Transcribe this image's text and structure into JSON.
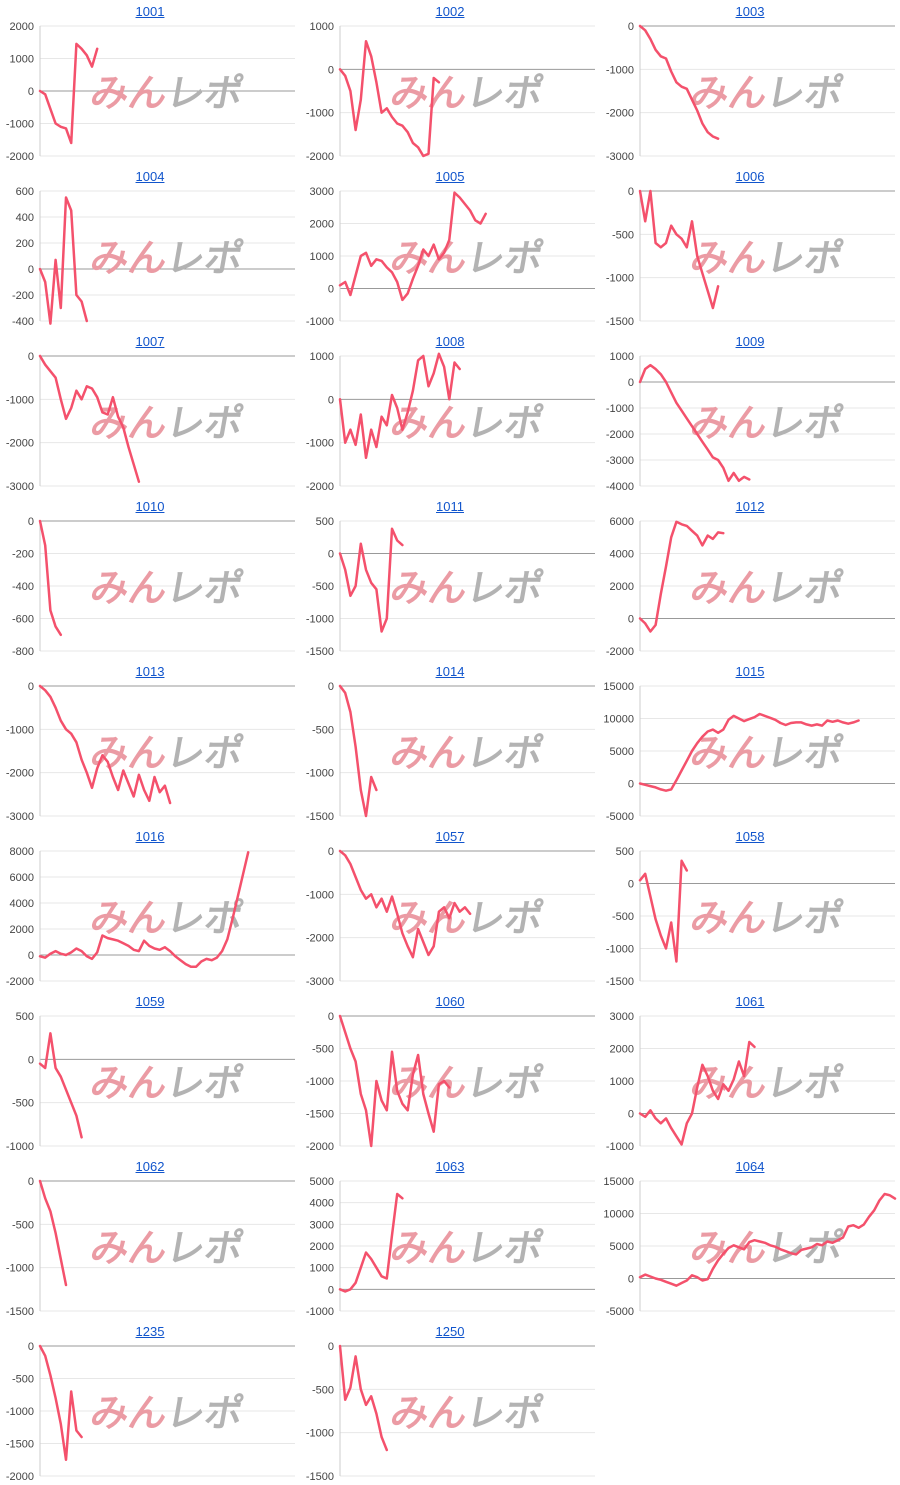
{
  "page": {
    "background": "#ffffff"
  },
  "style": {
    "line_color": "#f4516c",
    "title_color": "#1155cc",
    "tick_color": "#444444",
    "grid_color": "#e7e7e7",
    "zero_line_color": "#999999",
    "axis_color": "#cccccc",
    "watermark_pink_color": "#eb9ba4",
    "watermark_gray_color": "#b3b3b3"
  },
  "watermark": {
    "pink": "みん",
    "gray": "レポ",
    "full_text": "みんレポ"
  },
  "chart_data": {
    "type": "line",
    "grid": true,
    "x_slots": 50,
    "charts": [
      {
        "title": "1001",
        "yticks": [
          2000,
          1000,
          0,
          -1000,
          -2000
        ],
        "values": [
          0,
          -100,
          -550,
          -1000,
          -1100,
          -1150,
          -1600,
          1450,
          1300,
          1100,
          750,
          1300
        ]
      },
      {
        "title": "1002",
        "yticks": [
          1000,
          0,
          -1000,
          -2000
        ],
        "values": [
          0,
          -150,
          -500,
          -1400,
          -700,
          650,
          300,
          -300,
          -1000,
          -900,
          -1100,
          -1250,
          -1300,
          -1450,
          -1700,
          -1800,
          -2000,
          -1950,
          -200,
          -300
        ]
      },
      {
        "title": "1003",
        "yticks": [
          0,
          -1000,
          -2000,
          -3000
        ],
        "values": [
          0,
          -100,
          -300,
          -550,
          -700,
          -750,
          -1050,
          -1300,
          -1400,
          -1450,
          -1700,
          -1950,
          -2250,
          -2450,
          -2550,
          -2600
        ]
      },
      {
        "title": "1004",
        "yticks": [
          600,
          400,
          200,
          0,
          -200,
          -400
        ],
        "values": [
          0,
          -100,
          -420,
          70,
          -300,
          550,
          450,
          -200,
          -250,
          -400
        ]
      },
      {
        "title": "1005",
        "yticks": [
          3000,
          2000,
          1000,
          0,
          -1000
        ],
        "values": [
          100,
          200,
          -200,
          400,
          1000,
          1100,
          700,
          900,
          850,
          650,
          500,
          200,
          -350,
          -150,
          300,
          700,
          1200,
          1000,
          1350,
          900,
          1100,
          1500,
          2950,
          2800,
          2600,
          2400,
          2100,
          2000,
          2300
        ]
      },
      {
        "title": "1006",
        "yticks": [
          0,
          -500,
          -1000,
          -1500
        ],
        "values": [
          0,
          -350,
          0,
          -600,
          -650,
          -600,
          -400,
          -500,
          -550,
          -650,
          -350,
          -750,
          -950,
          -1150,
          -1350,
          -1100
        ]
      },
      {
        "title": "1007",
        "yticks": [
          0,
          -1000,
          -2000,
          -3000
        ],
        "values": [
          0,
          -200,
          -350,
          -500,
          -1000,
          -1450,
          -1200,
          -800,
          -1000,
          -700,
          -750,
          -950,
          -1300,
          -1350,
          -950,
          -1400,
          -1650,
          -2100,
          -2500,
          -2900
        ]
      },
      {
        "title": "1008",
        "yticks": [
          1000,
          0,
          -1000,
          -2000
        ],
        "values": [
          0,
          -1000,
          -700,
          -1050,
          -350,
          -1350,
          -700,
          -1100,
          -400,
          -600,
          100,
          -200,
          -700,
          -300,
          200,
          900,
          1000,
          300,
          600,
          1050,
          750,
          0,
          850,
          700
        ]
      },
      {
        "title": "1009",
        "yticks": [
          1000,
          0,
          -1000,
          -2000,
          -3000,
          -4000
        ],
        "values": [
          0,
          500,
          650,
          500,
          300,
          0,
          -400,
          -800,
          -1100,
          -1400,
          -1700,
          -2000,
          -2300,
          -2600,
          -2900,
          -3000,
          -3300,
          -3800,
          -3500,
          -3800,
          -3650,
          -3750
        ]
      },
      {
        "title": "1010",
        "yticks": [
          0,
          -200,
          -400,
          -600,
          -800
        ],
        "values": [
          0,
          -150,
          -550,
          -650,
          -700
        ]
      },
      {
        "title": "1011",
        "yticks": [
          500,
          0,
          -500,
          -1000,
          -1500
        ],
        "values": [
          0,
          -250,
          -650,
          -500,
          150,
          -250,
          -450,
          -550,
          -1200,
          -1000,
          380,
          200,
          130
        ]
      },
      {
        "title": "1012",
        "yticks": [
          6000,
          4000,
          2000,
          0,
          -2000
        ],
        "values": [
          0,
          -300,
          -800,
          -400,
          1500,
          3200,
          5000,
          5950,
          5800,
          5700,
          5400,
          5100,
          4500,
          5100,
          4900,
          5300,
          5250
        ]
      },
      {
        "title": "1013",
        "yticks": [
          0,
          -1000,
          -2000,
          -3000
        ],
        "values": [
          0,
          -100,
          -250,
          -500,
          -800,
          -1000,
          -1100,
          -1300,
          -1700,
          -2000,
          -2350,
          -1900,
          -1600,
          -1750,
          -2100,
          -2400,
          -1950,
          -2250,
          -2550,
          -2050,
          -2400,
          -2650,
          -2100,
          -2450,
          -2300,
          -2700
        ]
      },
      {
        "title": "1014",
        "yticks": [
          0,
          -500,
          -1000,
          -1500
        ],
        "values": [
          0,
          -80,
          -300,
          -700,
          -1200,
          -1500,
          -1050,
          -1200
        ]
      },
      {
        "title": "1015",
        "yticks": [
          15000,
          10000,
          5000,
          0,
          -5000
        ],
        "values": [
          0,
          -200,
          -400,
          -600,
          -900,
          -1100,
          -900,
          500,
          2000,
          3500,
          5000,
          6200,
          7200,
          8000,
          8300,
          7800,
          8300,
          9800,
          10400,
          10000,
          9600,
          9900,
          10200,
          10700,
          10400,
          10100,
          9800,
          9300,
          9000,
          9300,
          9400,
          9400,
          9100,
          8900,
          9100,
          8900,
          9700,
          9500,
          9700,
          9400,
          9200,
          9400,
          9700
        ]
      },
      {
        "title": "1016",
        "yticks": [
          8000,
          6000,
          4000,
          2000,
          0,
          -2000
        ],
        "values": [
          -100,
          -200,
          100,
          300,
          100,
          0,
          200,
          500,
          300,
          -100,
          -300,
          200,
          1500,
          1300,
          1200,
          1100,
          900,
          700,
          400,
          300,
          1100,
          700,
          500,
          400,
          600,
          300,
          -100,
          -400,
          -700,
          -900,
          -900,
          -500,
          -300,
          -400,
          -200,
          300,
          1200,
          2800,
          4500,
          6200,
          7900
        ]
      },
      {
        "title": "1057",
        "yticks": [
          0,
          -1000,
          -2000,
          -3000
        ],
        "values": [
          0,
          -100,
          -300,
          -600,
          -900,
          -1100,
          -1000,
          -1300,
          -1100,
          -1400,
          -1050,
          -1450,
          -1900,
          -2200,
          -2450,
          -1800,
          -2100,
          -2400,
          -2200,
          -1400,
          -1300,
          -1550,
          -1200,
          -1400,
          -1300,
          -1450
        ]
      },
      {
        "title": "1058",
        "yticks": [
          500,
          0,
          -500,
          -1000,
          -1500
        ],
        "values": [
          50,
          150,
          -200,
          -550,
          -800,
          -1000,
          -600,
          -1200,
          350,
          200
        ]
      },
      {
        "title": "1059",
        "yticks": [
          500,
          0,
          -500,
          -1000
        ],
        "values": [
          -50,
          -100,
          300,
          -100,
          -200,
          -350,
          -500,
          -650,
          -900
        ]
      },
      {
        "title": "1060",
        "yticks": [
          0,
          -500,
          -1000,
          -1500,
          -2000
        ],
        "values": [
          0,
          -250,
          -500,
          -700,
          -1200,
          -1450,
          -2000,
          -1000,
          -1300,
          -1450,
          -550,
          -1150,
          -1350,
          -1450,
          -900,
          -600,
          -1200,
          -1500,
          -1780,
          -1050,
          -1000,
          -1100
        ]
      },
      {
        "title": "1061",
        "yticks": [
          3000,
          2000,
          1000,
          0,
          -1000
        ],
        "values": [
          0,
          -100,
          100,
          -150,
          -300,
          -150,
          -450,
          -700,
          -950,
          -300,
          0,
          800,
          1500,
          1150,
          700,
          450,
          900,
          700,
          1050,
          1600,
          1150,
          2200,
          2050
        ]
      },
      {
        "title": "1062",
        "yticks": [
          0,
          -500,
          -1000,
          -1500
        ],
        "values": [
          0,
          -200,
          -350,
          -600,
          -900,
          -1200
        ]
      },
      {
        "title": "1063",
        "yticks": [
          5000,
          4000,
          3000,
          2000,
          1000,
          0,
          -1000
        ],
        "values": [
          0,
          -100,
          0,
          300,
          1000,
          1700,
          1400,
          1000,
          600,
          500,
          2500,
          4400,
          4200
        ]
      },
      {
        "title": "1064",
        "yticks": [
          15000,
          10000,
          5000,
          0,
          -5000
        ],
        "values": [
          200,
          600,
          300,
          0,
          -200,
          -500,
          -800,
          -1100,
          -700,
          -300,
          500,
          200,
          -300,
          -100,
          1500,
          2800,
          3800,
          4700,
          5100,
          4800,
          4500,
          5600,
          5900,
          5700,
          5500,
          5100,
          4900,
          4500,
          4200,
          3900,
          3700,
          4400,
          4600,
          4800,
          5300,
          5100,
          5700,
          5500,
          5900,
          6300,
          8000,
          8200,
          7800,
          8300,
          9500,
          10500,
          12000,
          13000,
          12800,
          12300
        ]
      },
      {
        "title": "1235",
        "yticks": [
          0,
          -500,
          -1000,
          -1500,
          -2000
        ],
        "values": [
          0,
          -150,
          -450,
          -800,
          -1200,
          -1750,
          -700,
          -1300,
          -1400
        ]
      },
      {
        "title": "1250",
        "yticks": [
          0,
          -500,
          -1000,
          -1500
        ],
        "values": [
          0,
          -620,
          -480,
          -120,
          -500,
          -680,
          -580,
          -780,
          -1050,
          -1200
        ]
      }
    ]
  }
}
